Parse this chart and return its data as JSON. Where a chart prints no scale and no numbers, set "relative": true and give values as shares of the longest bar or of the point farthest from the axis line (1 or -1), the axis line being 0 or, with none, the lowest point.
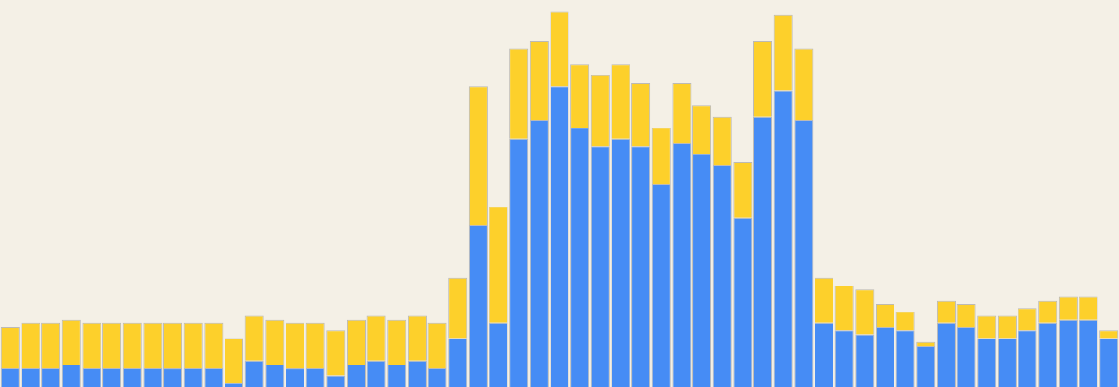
{
  "chart_data": {
    "type": "bar",
    "relative": true,
    "stacked": true,
    "categories": [
      null,
      null,
      null,
      null,
      null,
      null,
      null,
      null,
      null,
      null,
      null,
      null,
      null,
      null,
      null,
      null,
      null,
      null,
      null,
      null,
      null,
      null,
      null,
      null,
      null,
      null,
      null,
      null,
      null,
      null,
      null,
      null,
      null,
      null,
      null,
      null,
      null,
      null,
      null,
      null,
      null,
      null,
      null,
      null,
      null,
      null,
      null,
      null,
      null,
      null,
      null,
      null,
      null,
      null,
      null
    ],
    "series": [
      {
        "color": "#468cf5",
        "values": [
          0.05,
          0.05,
          0.05,
          0.06,
          0.05,
          0.05,
          0.05,
          0.05,
          0.05,
          0.05,
          0.05,
          0.01,
          0.07,
          0.06,
          0.05,
          0.05,
          0.03,
          0.06,
          0.07,
          0.06,
          0.07,
          0.05,
          0.13,
          0.43,
          0.17,
          0.66,
          0.71,
          0.8,
          0.69,
          0.64,
          0.66,
          0.64,
          0.54,
          0.65,
          0.62,
          0.59,
          0.45,
          0.72,
          0.79,
          0.71,
          0.17,
          0.15,
          0.14,
          0.16,
          0.15,
          0.11,
          0.17,
          0.16,
          0.13,
          0.13,
          0.15,
          0.17,
          0.18,
          0.18,
          0.13
        ]
      },
      {
        "color": "#fdd02b",
        "values": [
          0.11,
          0.12,
          0.12,
          0.12,
          0.12,
          0.12,
          0.12,
          0.12,
          0.12,
          0.12,
          0.12,
          0.12,
          0.12,
          0.12,
          0.12,
          0.12,
          0.12,
          0.12,
          0.12,
          0.12,
          0.12,
          0.12,
          0.16,
          0.37,
          0.31,
          0.24,
          0.21,
          0.2,
          0.17,
          0.19,
          0.2,
          0.17,
          0.15,
          0.16,
          0.13,
          0.13,
          0.15,
          0.2,
          0.2,
          0.19,
          0.12,
          0.12,
          0.12,
          0.06,
          0.05,
          0.01,
          0.06,
          0.06,
          0.06,
          0.06,
          0.06,
          0.06,
          0.06,
          0.06,
          0.02
        ]
      }
    ]
  }
}
